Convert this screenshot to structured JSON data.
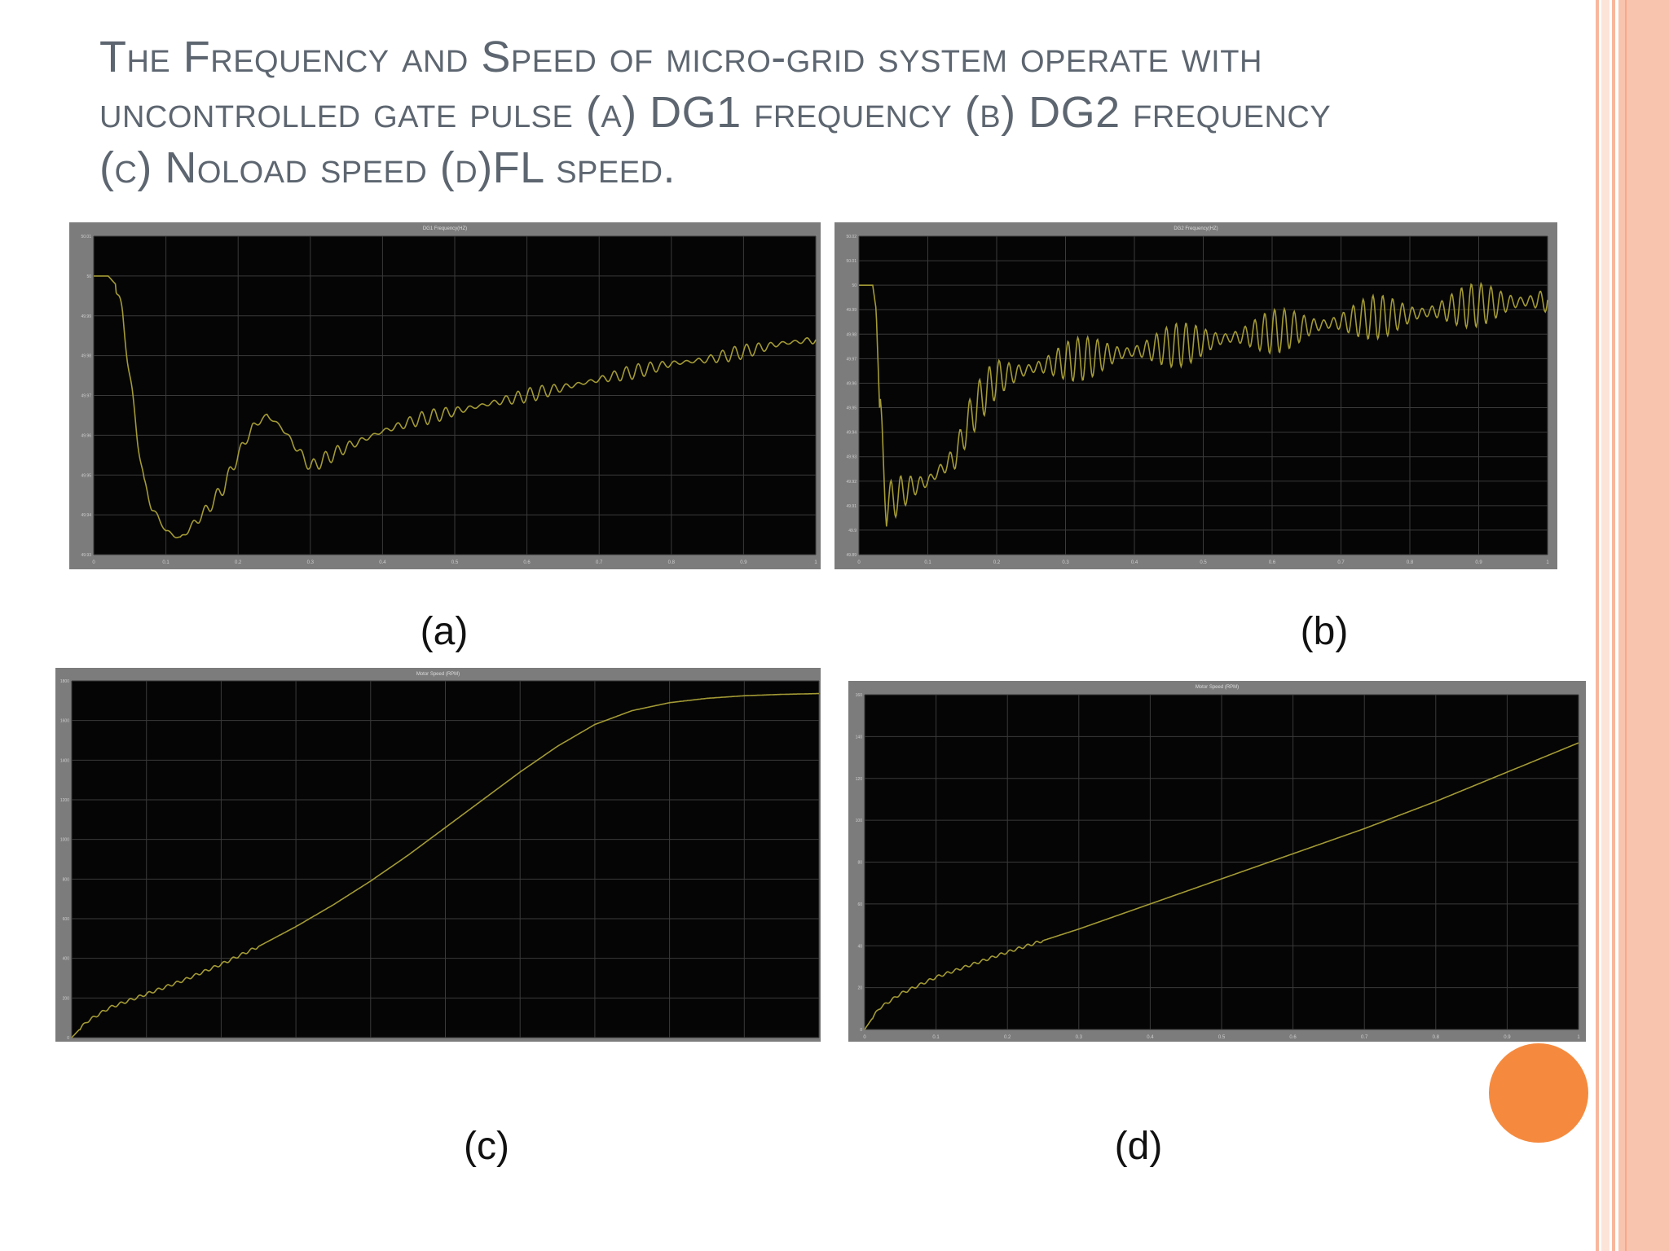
{
  "slide": {
    "title": "The Frequency and Speed of micro-grid system operate with uncontrolled gate pulse (a) DG1 frequency (b) DG2 frequency (c) Noload speed (d)FL speed.",
    "captions": [
      "(a)",
      "(b)",
      "(c)",
      "(d)"
    ],
    "colors": {
      "accent": "#f58a3e",
      "stripe": "#f8c0a8",
      "trace": "#a39a35",
      "plot_bg": "#050505",
      "frame": "#7c7c7c",
      "title": "#5d6670"
    }
  },
  "chart_data": [
    {
      "type": "line",
      "title": "DG1 Frequency(HZ)",
      "xlim": [
        0,
        1
      ],
      "ylim": [
        49.93,
        50.01
      ],
      "x_ticks": [
        0,
        0.1,
        0.2,
        0.3,
        0.4,
        0.5,
        0.6,
        0.7,
        0.8,
        0.9,
        1
      ],
      "y_ticks": [
        49.93,
        49.94,
        49.95,
        49.96,
        49.97,
        49.98,
        49.99,
        50,
        50.01
      ],
      "series": [
        {
          "x": [
            0,
            0.02,
            0.03,
            0.04,
            0.05,
            0.06,
            0.07,
            0.08,
            0.1,
            0.12,
            0.14,
            0.16,
            0.18,
            0.2,
            0.22,
            0.24,
            0.26,
            0.28,
            0.3,
            0.35,
            0.4,
            0.45,
            0.5,
            0.55,
            0.6,
            0.65,
            0.7,
            0.75,
            0.8,
            0.85,
            0.9,
            0.95,
            1.0
          ],
          "y": [
            50.0,
            50.0,
            49.998,
            49.99,
            49.975,
            49.96,
            49.948,
            49.942,
            49.936,
            49.934,
            49.938,
            49.942,
            49.947,
            49.955,
            49.962,
            49.965,
            49.962,
            49.957,
            49.952,
            49.957,
            49.961,
            49.964,
            49.966,
            49.968,
            49.97,
            49.972,
            49.974,
            49.976,
            49.978,
            49.979,
            49.981,
            49.983,
            49.984
          ]
        }
      ]
    },
    {
      "type": "line",
      "title": "DG2 Frequency(HZ)",
      "xlim": [
        0,
        1
      ],
      "ylim": [
        49.89,
        50.02
      ],
      "x_ticks": [
        0,
        0.1,
        0.2,
        0.3,
        0.4,
        0.5,
        0.6,
        0.7,
        0.8,
        0.9,
        1
      ],
      "y_ticks": [
        49.89,
        49.9,
        49.91,
        49.92,
        49.93,
        49.94,
        49.95,
        49.96,
        49.97,
        49.98,
        49.99,
        50,
        50.01,
        50.02
      ],
      "series": [
        {
          "x": [
            0,
            0.02,
            0.025,
            0.03,
            0.04,
            0.06,
            0.08,
            0.1,
            0.12,
            0.14,
            0.16,
            0.18,
            0.2,
            0.25,
            0.3,
            0.35,
            0.4,
            0.45,
            0.5,
            0.55,
            0.6,
            0.65,
            0.7,
            0.75,
            0.8,
            0.85,
            0.9,
            0.95,
            1.0
          ],
          "y": [
            50.0,
            50.0,
            49.99,
            49.95,
            49.91,
            49.915,
            49.918,
            49.92,
            49.925,
            49.93,
            49.945,
            49.955,
            49.962,
            49.966,
            49.969,
            49.971,
            49.973,
            49.975,
            49.977,
            49.979,
            49.981,
            49.983,
            49.985,
            49.987,
            49.988,
            49.99,
            49.992,
            49.993,
            49.994
          ]
        }
      ]
    },
    {
      "type": "line",
      "title": "Motor Speed (RPM)",
      "xlim": [
        0,
        1
      ],
      "ylim": [
        0,
        1800
      ],
      "x_ticks": [
        0,
        0.1,
        0.2,
        0.3,
        0.4,
        0.5,
        0.6,
        0.7,
        0.8,
        0.9,
        1
      ],
      "y_ticks": [
        0,
        200,
        400,
        600,
        800,
        1000,
        1200,
        1400,
        1600,
        1800
      ],
      "series": [
        {
          "x": [
            0,
            0.02,
            0.05,
            0.1,
            0.15,
            0.2,
            0.25,
            0.3,
            0.35,
            0.4,
            0.45,
            0.5,
            0.55,
            0.6,
            0.65,
            0.7,
            0.75,
            0.8,
            0.85,
            0.9,
            0.95,
            1.0
          ],
          "y": [
            0,
            80,
            150,
            220,
            290,
            370,
            460,
            560,
            670,
            790,
            920,
            1060,
            1200,
            1340,
            1470,
            1580,
            1650,
            1690,
            1712,
            1725,
            1732,
            1736
          ]
        }
      ]
    },
    {
      "type": "line",
      "title": "Motor Speed (RPM)",
      "xlim": [
        0,
        1
      ],
      "ylim": [
        0,
        160
      ],
      "x_ticks": [
        0,
        0.1,
        0.2,
        0.3,
        0.4,
        0.5,
        0.6,
        0.7,
        0.8,
        0.9,
        1
      ],
      "y_ticks": [
        0,
        20,
        40,
        60,
        80,
        100,
        120,
        140,
        160
      ],
      "series": [
        {
          "x": [
            0,
            0.02,
            0.05,
            0.1,
            0.15,
            0.2,
            0.3,
            0.4,
            0.5,
            0.6,
            0.7,
            0.8,
            0.9,
            1.0
          ],
          "y": [
            0,
            10,
            17,
            25,
            31,
            37,
            48,
            60,
            72,
            84,
            96,
            109,
            123,
            137
          ]
        }
      ]
    }
  ]
}
